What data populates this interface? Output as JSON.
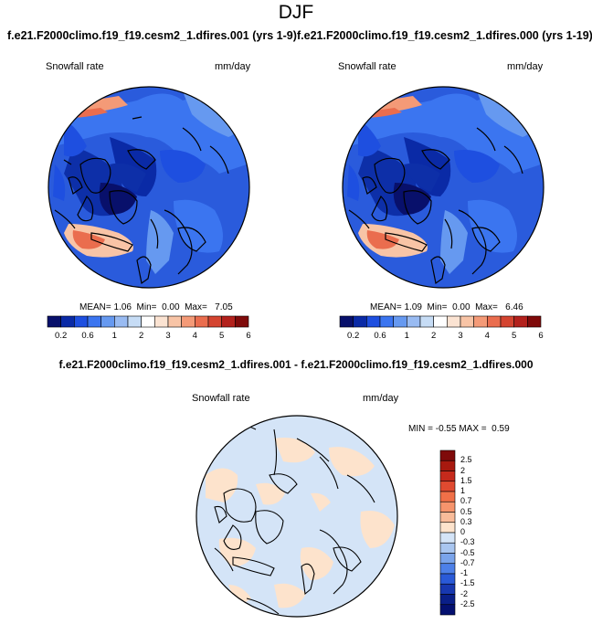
{
  "title": "DJF",
  "panels": [
    {
      "case_title": "f.e21.F2000climo.f19_f19.cesm2_1.dfires.001 (yrs 1-9)",
      "variable": "Snowfall rate",
      "units": "mm/day",
      "stats": {
        "mean_label": "MEAN=",
        "mean": "1.06",
        "min_label": "Min=",
        "min": "0.00",
        "max_label": "Max=",
        "max": "7.05"
      }
    },
    {
      "case_title": "f.e21.F2000climo.f19_f19.cesm2_1.dfires.000 (yrs 1-19)",
      "variable": "Snowfall rate",
      "units": "mm/day",
      "stats": {
        "mean_label": "MEAN=",
        "mean": "1.09",
        "min_label": "Min=",
        "min": "0.00",
        "max_label": "Max=",
        "max": "6.46"
      }
    }
  ],
  "colorbar": {
    "ticks": [
      "0.2",
      "0.6",
      "1",
      "2",
      "3",
      "4",
      "5",
      "6"
    ],
    "colors": [
      "#08106b",
      "#0a2aa6",
      "#1e4fe0",
      "#3b75f0",
      "#6699f0",
      "#99bbf2",
      "#c6dcf5",
      "#ffffff",
      "#fbe3d2",
      "#f8c4a6",
      "#f49a77",
      "#ea6d4e",
      "#d44430",
      "#b3211c",
      "#7f0a0a"
    ]
  },
  "difference": {
    "title": "f.e21.F2000climo.f19_f19.cesm2_1.dfires.001 - f.e21.F2000climo.f19_f19.cesm2_1.dfires.000",
    "variable": "Snowfall rate",
    "units": "mm/day",
    "stats": {
      "min_label": "MIN =",
      "min": "-0.55",
      "max_label": "MAX =",
      "max": "0.59"
    },
    "colorbar": {
      "ticks": [
        "2.5",
        "2",
        "1.5",
        "1",
        "0.7",
        "0.5",
        "0.3",
        "0",
        "-0.3",
        "-0.5",
        "-0.7",
        "-1",
        "-1.5",
        "-2",
        "-2.5"
      ],
      "colors": [
        "#7f0a0a",
        "#a8190f",
        "#c62a1c",
        "#e04a30",
        "#f07048",
        "#f6946c",
        "#f9bc9a",
        "#fde3cc",
        "#d4e4f7",
        "#a9c6f0",
        "#7aa4eb",
        "#4d80e8",
        "#2a5ad8",
        "#1838b0",
        "#0a1f88",
        "#041070"
      ]
    }
  },
  "colors": {
    "ocean_high": "#f06a44",
    "land_low": "#0d2fa8",
    "mid": "#2f61e3",
    "coast": "#000000"
  }
}
